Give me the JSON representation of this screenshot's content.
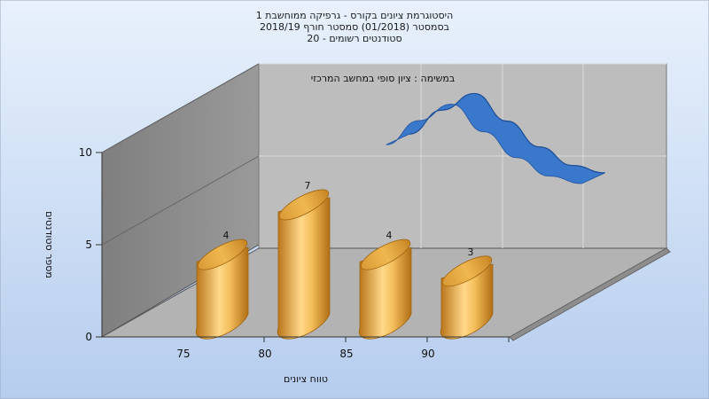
{
  "title": {
    "line1": "היסטוגרמת ציונים בקורס - גרפיקה ממוחשבת 1",
    "line2": "בסמסטר  (01/2018)  סמסטר חורף 2018/19",
    "line3": "סטודנטים רשומים - 20"
  },
  "note": "במשימה : ציון סופי במחשב המרכזי",
  "chart_data": {
    "type": "bar",
    "categories": [
      "75",
      "80",
      "85",
      "90"
    ],
    "values": [
      4,
      7,
      4,
      3
    ],
    "data_labels": [
      "4",
      "7",
      "4",
      "3"
    ],
    "ylim": [
      0,
      10
    ],
    "yticks": [
      "0",
      "5",
      "10"
    ],
    "xlabel": "טווח ציונים",
    "ylabel": "מספר סטודנטים",
    "bar_shape": "cylinder",
    "three_d": true,
    "grid": true,
    "curve": {
      "type": "area",
      "x": [
        82,
        84,
        86,
        88,
        90,
        92,
        94
      ],
      "values": [
        8.5,
        9.8,
        10.7,
        9.2,
        7.8,
        6.8,
        6.4
      ]
    }
  },
  "colors": {
    "background": "#cbdcf6",
    "bar": "#e8a93c",
    "bar_highlight": "#ffd98a",
    "bar_shadow": "#b06e15",
    "curve": "#3a78cc",
    "back_wall": "#bdbdbd",
    "side_wall": "#8c8c8c",
    "floor": "#b3b3b3"
  }
}
